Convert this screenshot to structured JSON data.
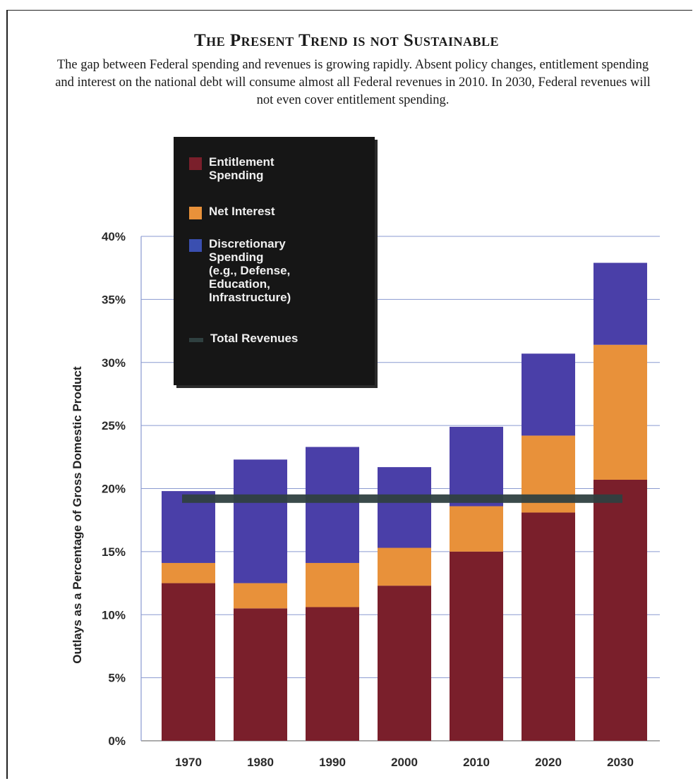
{
  "title": "The Present Trend is not Sustainable",
  "subtitle": "The gap between Federal spending and revenues is growing rapidly.  Absent policy changes, entitlement spending and interest on the national debt will consume almost all Federal revenues in 2010.  In 2030, Federal revenues will not even cover entitlement spending.",
  "legend": [
    {
      "label": "Entitlement\nSpending",
      "color": "#7a1f2b",
      "kind": "box"
    },
    {
      "label": "Net Interest",
      "color": "#e8913a",
      "kind": "box"
    },
    {
      "label": "Discretionary\nSpending\n(e.g., Defense,\nEducation,\nInfrastructure)",
      "color": "#3a4fb0",
      "kind": "box"
    },
    {
      "label": "Total Revenues",
      "color": "#2f4040",
      "kind": "line"
    }
  ],
  "chart_data": {
    "type": "bar",
    "stacked": true,
    "categories": [
      "1970",
      "1980",
      "1990",
      "2000",
      "2010",
      "2020",
      "2030"
    ],
    "series": [
      {
        "name": "Entitlement Spending",
        "color": "#7a1f2b",
        "values": [
          12.5,
          10.5,
          10.6,
          12.3,
          15.0,
          18.1,
          20.7
        ]
      },
      {
        "name": "Net Interest",
        "color": "#e8913a",
        "values": [
          1.6,
          2.0,
          3.5,
          3.0,
          3.6,
          6.1,
          10.7
        ]
      },
      {
        "name": "Discretionary Spending (e.g., Defense, Education, Infrastructure)",
        "color": "#4a3fa8",
        "values": [
          5.7,
          9.8,
          9.2,
          6.4,
          6.3,
          6.5,
          6.5
        ]
      }
    ],
    "lines": [
      {
        "name": "Total Revenues",
        "color": "#2f4040",
        "value": 19.2
      }
    ],
    "ylabel": "Outlays as a Percentage of Gross Domestic Product",
    "ylim": [
      0,
      40
    ],
    "yticks": [
      "0%",
      "5%",
      "10%",
      "15%",
      "20%",
      "25%",
      "30%",
      "35%",
      "40%"
    ],
    "grid": true
  }
}
